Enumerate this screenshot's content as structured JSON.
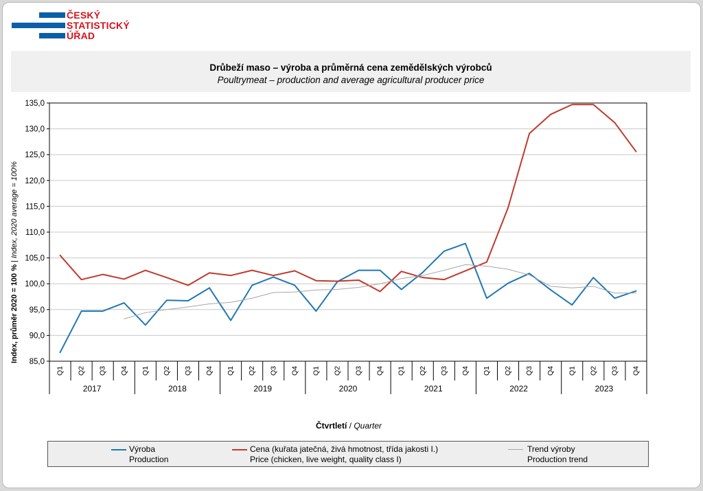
{
  "logo": {
    "line1": "ČESKÝ",
    "line2": "STATISTICKÝ",
    "line3": "ÚŘAD"
  },
  "title_cs": "Drůbeží maso – výroba a průměrná cena zemědělských  výrobců",
  "title_en": "Poultrymeat – production and average agricultural producer price",
  "axis": {
    "ylabel_bold": "Index, průměr 2020 = 100 %",
    "ylabel_sep": " | ",
    "ylabel_italic": "Index, 2020 average = 100%",
    "xlabel_bold": "Čtvrtletí",
    "xlabel_sep": " / ",
    "xlabel_italic": "Quarter"
  },
  "legend": [
    {
      "cs": "Výroba",
      "en": "Production",
      "color": "#1f77b4"
    },
    {
      "cs": "Cena (kuřata jatečná, živá hmotnost, třída jakosti I.)",
      "en": "Price (chicken, live weight, quality class I)",
      "color": "#c0392b"
    },
    {
      "cs": "Trend výroby",
      "en": "Production trend",
      "color": "#a6a6a6"
    }
  ],
  "chart_data": {
    "type": "line",
    "title": "Drůbeží maso – výroba a průměrná cena zemědělských  výrobců",
    "subtitle": "Poultrymeat – production and average agricultural producer price",
    "ylabel": "Index, průměr 2020 = 100 % | Index, 2020 average = 100%",
    "xlabel": "Čtvrtletí / Quarter",
    "ylim": [
      85,
      135
    ],
    "yticks": [
      "85,0",
      "90,0",
      "95,0",
      "100,0",
      "105,0",
      "110,0",
      "115,0",
      "120,0",
      "125,0",
      "130,0",
      "135,0"
    ],
    "ytick_values": [
      85,
      90,
      95,
      100,
      105,
      110,
      115,
      120,
      125,
      130,
      135
    ],
    "quarters": [
      "Q1",
      "Q2",
      "Q3",
      "Q4",
      "Q1",
      "Q2",
      "Q3",
      "Q4",
      "Q1",
      "Q2",
      "Q3",
      "Q4",
      "Q1",
      "Q2",
      "Q3",
      "Q4",
      "Q1",
      "Q2",
      "Q3",
      "Q4",
      "Q1",
      "Q2",
      "Q3",
      "Q4",
      "Q1",
      "Q2",
      "Q3",
      "Q4"
    ],
    "years": [
      "2017",
      "2018",
      "2019",
      "2020",
      "2021",
      "2022",
      "2023"
    ],
    "grid": true,
    "legend_position": "bottom",
    "series": [
      {
        "name": "Výroba / Production",
        "color": "#1f77b4",
        "width": 2,
        "values": [
          86.7,
          94.7,
          94.7,
          96.3,
          92.0,
          96.8,
          96.7,
          99.2,
          92.9,
          99.7,
          101.3,
          99.7,
          94.7,
          100.4,
          102.6,
          102.6,
          98.9,
          102.2,
          106.3,
          107.8,
          97.2,
          100.1,
          102.0,
          98.8,
          95.9,
          101.2,
          97.2,
          98.6
        ]
      },
      {
        "name": "Cena / Price",
        "color": "#c0392b",
        "width": 2,
        "values": [
          105.5,
          100.8,
          101.8,
          100.9,
          102.6,
          101.2,
          99.7,
          102.1,
          101.6,
          102.6,
          101.6,
          102.5,
          100.6,
          100.5,
          100.7,
          98.5,
          102.4,
          101.2,
          100.8,
          102.5,
          104.2,
          114.7,
          129.1,
          132.8,
          134.7,
          134.7,
          131.2,
          125.6
        ]
      },
      {
        "name": "Trend výroby / Production trend",
        "color": "#a6a6a6",
        "width": 1,
        "values": [
          null,
          null,
          null,
          93.2,
          94.4,
          95.0,
          95.5,
          96.1,
          96.4,
          97.2,
          98.3,
          98.4,
          98.8,
          98.9,
          99.3,
          100.0,
          101.0,
          101.6,
          102.6,
          103.7,
          103.4,
          102.8,
          101.7,
          99.5,
          99.2,
          99.5,
          98.2,
          98.2
        ]
      }
    ]
  }
}
